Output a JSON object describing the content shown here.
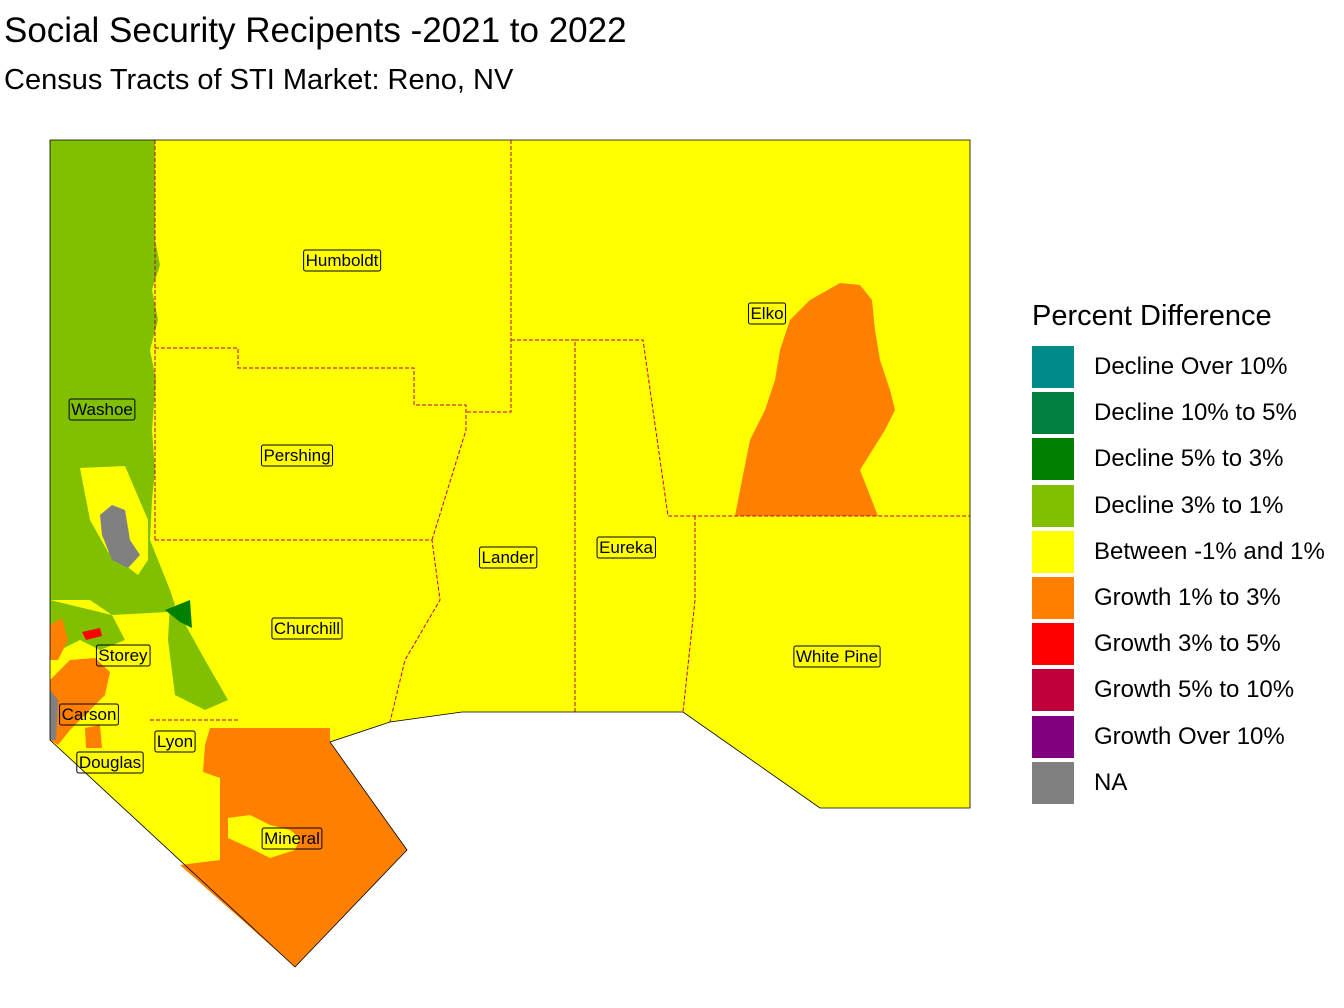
{
  "title": "Social Security Recipents -2021 to 2022",
  "subtitle": "Census Tracts of STI Market: Reno, NV",
  "colors": {
    "decline_over_10": "#008B8B",
    "decline_10_to_5": "#008040",
    "decline_5_to_3": "#008000",
    "decline_3_to_1": "#80C000",
    "between": "#FFFF00",
    "growth_1_to_3": "#FF8000",
    "growth_3_to_5": "#FF0000",
    "growth_5_to_10": "#C0003A",
    "growth_over_10": "#800080",
    "na": "#808080",
    "boundary": "#C0003A"
  },
  "counties": [
    {
      "name": "Humboldt"
    },
    {
      "name": "Elko"
    },
    {
      "name": "Washoe"
    },
    {
      "name": "Pershing"
    },
    {
      "name": "Lander"
    },
    {
      "name": "Eureka"
    },
    {
      "name": "Churchill"
    },
    {
      "name": "Storey"
    },
    {
      "name": "White Pine"
    },
    {
      "name": "Carson"
    },
    {
      "name": "Lyon"
    },
    {
      "name": "Douglas"
    },
    {
      "name": "Mineral"
    }
  ],
  "legend": {
    "title": "Percent Difference",
    "items": [
      {
        "label": "Decline Over 10%",
        "color": "#008B8B"
      },
      {
        "label": "Decline 10% to 5%",
        "color": "#008040"
      },
      {
        "label": "Decline 5% to 3%",
        "color": "#008000"
      },
      {
        "label": "Decline 3% to 1%",
        "color": "#80C000"
      },
      {
        "label": "Between -1% and 1%",
        "color": "#FFFF00"
      },
      {
        "label": "Growth 1% to 3%",
        "color": "#FF8000"
      },
      {
        "label": "Growth 3% to 5%",
        "color": "#FF0000"
      },
      {
        "label": "Growth 5% to 10%",
        "color": "#C0003A"
      },
      {
        "label": "Growth Over 10%",
        "color": "#800080"
      },
      {
        "label": "NA",
        "color": "#808080"
      }
    ]
  }
}
